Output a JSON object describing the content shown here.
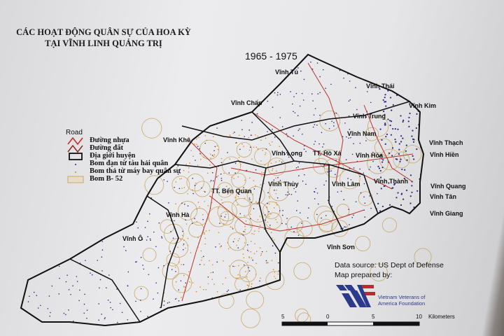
{
  "title": {
    "line1": "CÁC HOẠT ĐỘNG QUÂN SỰ CỦA HOA KỲ",
    "line2": "TẠI VĨNH LINH QUẢNG TRỊ"
  },
  "period": "1965 - 1975",
  "legend": {
    "heading": "Road",
    "items": [
      {
        "label": "Đường nhựa",
        "symbol": "red-zigzag",
        "color": "#c0282d"
      },
      {
        "label": "Đường đất",
        "symbol": "brown-zigzag",
        "color": "#8b2a1e"
      },
      {
        "label": "Địa giới huyện",
        "symbol": "black-rectangle",
        "color": "#111111"
      },
      {
        "label": "Bom đạn từ tàu hải quân",
        "symbol": "dot",
        "color": "#2a2a80"
      },
      {
        "label": "Bom thả từ máy bay quân sự",
        "symbol": "dot",
        "color": "#d98a1a"
      },
      {
        "label": "Bom B- 52",
        "symbol": "tan-rectangle",
        "color": "#c9a86a"
      }
    ]
  },
  "places": [
    "Vĩnh Tú",
    "Vĩnh Thái",
    "Vĩnh Chấp",
    "Vĩnh Kim",
    "Vĩnh Trung",
    "Vĩnh Nam",
    "Vĩnh Khê",
    "Vĩnh Long",
    "TT. Hồ Xá",
    "Vĩnh Hòa",
    "Vĩnh Thạch",
    "Vĩnh Hiền",
    "TT. Bến Quan",
    "Vĩnh Thủy",
    "Vĩnh Lâm",
    "Vĩnh Thành",
    "Vĩnh Quang",
    "Vĩnh Tân",
    "Vĩnh Giang",
    "Vĩnh Hà",
    "Vĩnh Sơn",
    "Vĩnh Ô"
  ],
  "source": {
    "line1": "Data source:  US Dept of Defense",
    "line2": "Map prepared by:"
  },
  "logo": {
    "line1": "Vietnam Veterans of",
    "line2": "America Foundation"
  },
  "scale": {
    "ticks": [
      "5",
      "0",
      "5",
      "10"
    ],
    "unit": "Kilometers"
  },
  "colors": {
    "boundary": "#111111",
    "road": "#b8332a",
    "naval_dots": "#2a2a80",
    "air_dots": "#d98a1a",
    "b52": "#c9a86a"
  }
}
